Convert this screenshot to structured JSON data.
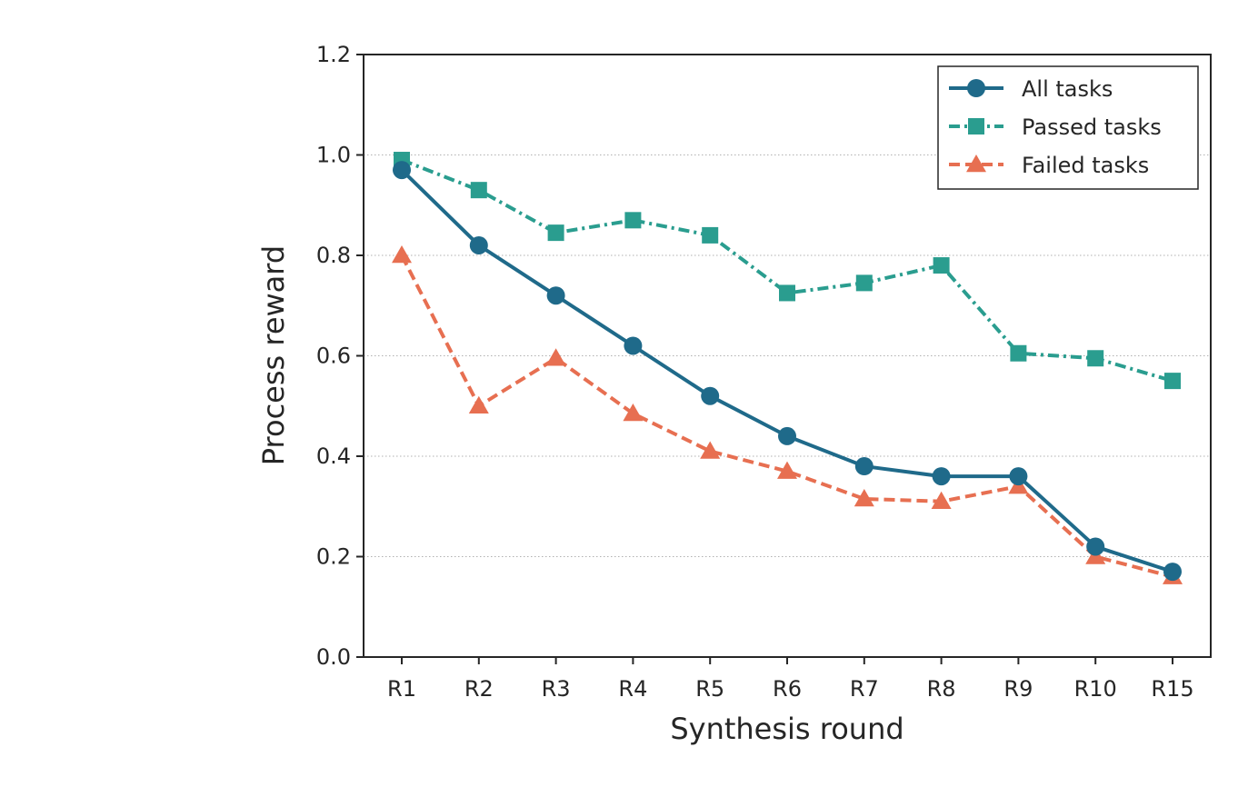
{
  "chart_data": {
    "type": "line",
    "title": "",
    "xlabel": "Synthesis round",
    "ylabel": "Process reward",
    "categories": [
      "R1",
      "R2",
      "R3",
      "R4",
      "R5",
      "R6",
      "R7",
      "R8",
      "R9",
      "R10",
      "R15"
    ],
    "ylim": [
      0.0,
      1.2
    ],
    "yticks": [
      "0.0",
      "0.2",
      "0.4",
      "0.6",
      "0.8",
      "1.0",
      "1.2"
    ],
    "grid": "horizontal dotted",
    "legend_position": "top-right",
    "series": [
      {
        "name": "All tasks",
        "style": "solid",
        "marker": "circle",
        "color": "#1f6a8a",
        "values": [
          0.97,
          0.82,
          0.72,
          0.62,
          0.52,
          0.44,
          0.38,
          0.36,
          0.36,
          0.22,
          0.17
        ]
      },
      {
        "name": "Passed tasks",
        "style": "dashdot",
        "marker": "square",
        "color": "#2a9d8f",
        "values": [
          0.99,
          0.93,
          0.845,
          0.87,
          0.84,
          0.725,
          0.745,
          0.78,
          0.605,
          0.595,
          0.55
        ]
      },
      {
        "name": "Failed tasks",
        "style": "dashed",
        "marker": "triangle",
        "color": "#e76f51",
        "values": [
          0.8,
          0.5,
          0.595,
          0.485,
          0.41,
          0.37,
          0.315,
          0.31,
          0.34,
          0.2,
          0.16
        ]
      }
    ]
  }
}
